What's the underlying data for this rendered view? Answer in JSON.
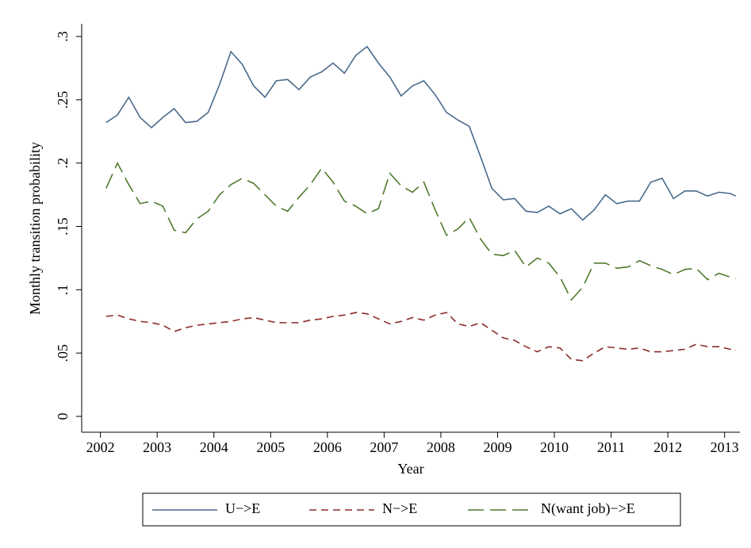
{
  "chart_data": {
    "type": "line",
    "xlabel": "Year",
    "ylabel": "Monthly transition probability",
    "x": [
      2002.1,
      2002.3,
      2002.5,
      2002.7,
      2002.9,
      2003.1,
      2003.3,
      2003.5,
      2003.7,
      2003.9,
      2004.1,
      2004.3,
      2004.5,
      2004.7,
      2004.9,
      2005.1,
      2005.3,
      2005.5,
      2005.7,
      2005.9,
      2006.1,
      2006.3,
      2006.5,
      2006.7,
      2006.9,
      2007.1,
      2007.3,
      2007.5,
      2007.7,
      2007.9,
      2008.1,
      2008.3,
      2008.5,
      2008.7,
      2008.9,
      2009.1,
      2009.3,
      2009.5,
      2009.7,
      2009.9,
      2010.1,
      2010.3,
      2010.5,
      2010.7,
      2010.9,
      2011.1,
      2011.3,
      2011.5,
      2011.7,
      2011.9,
      2012.1,
      2012.3,
      2012.5,
      2012.7,
      2012.9,
      2013.1,
      2013.2
    ],
    "series": [
      {
        "name": "U−>E",
        "color": "#4a6a8c",
        "dash": "solid",
        "values": [
          0.232,
          0.238,
          0.252,
          0.236,
          0.228,
          0.236,
          0.243,
          0.232,
          0.233,
          0.24,
          0.262,
          0.288,
          0.278,
          0.261,
          0.252,
          0.265,
          0.266,
          0.258,
          0.268,
          0.272,
          0.279,
          0.271,
          0.285,
          0.292,
          0.279,
          0.268,
          0.253,
          0.261,
          0.265,
          0.254,
          0.24,
          0.234,
          0.229,
          0.205,
          0.18,
          0.171,
          0.172,
          0.162,
          0.161,
          0.166,
          0.16,
          0.164,
          0.155,
          0.163,
          0.175,
          0.168,
          0.17,
          0.17,
          0.185,
          0.188,
          0.172,
          0.178,
          0.178,
          0.174,
          0.177,
          0.176,
          0.174
        ]
      },
      {
        "name": "N−>E",
        "color": "#8c2c2c",
        "dash": "short",
        "values": [
          0.079,
          0.08,
          0.077,
          0.075,
          0.074,
          0.072,
          0.067,
          0.07,
          0.072,
          0.073,
          0.074,
          0.075,
          0.077,
          0.078,
          0.076,
          0.074,
          0.074,
          0.074,
          0.076,
          0.077,
          0.079,
          0.08,
          0.082,
          0.081,
          0.077,
          0.073,
          0.075,
          0.078,
          0.076,
          0.08,
          0.082,
          0.073,
          0.071,
          0.074,
          0.068,
          0.062,
          0.06,
          0.055,
          0.051,
          0.055,
          0.054,
          0.045,
          0.044,
          0.05,
          0.055,
          0.054,
          0.053,
          0.054,
          0.051,
          0.051,
          0.052,
          0.053,
          0.057,
          0.055,
          0.055,
          0.053,
          0.052
        ]
      },
      {
        "name": "N(want job)−>E",
        "color": "#4f7a2c",
        "dash": "long",
        "values": [
          0.18,
          0.2,
          0.183,
          0.168,
          0.17,
          0.166,
          0.147,
          0.145,
          0.156,
          0.162,
          0.175,
          0.183,
          0.188,
          0.184,
          0.175,
          0.166,
          0.162,
          0.173,
          0.183,
          0.196,
          0.185,
          0.17,
          0.166,
          0.16,
          0.164,
          0.192,
          0.182,
          0.177,
          0.185,
          0.163,
          0.143,
          0.148,
          0.157,
          0.14,
          0.128,
          0.127,
          0.131,
          0.118,
          0.125,
          0.121,
          0.11,
          0.092,
          0.102,
          0.121,
          0.121,
          0.117,
          0.118,
          0.123,
          0.119,
          0.116,
          0.112,
          0.116,
          0.117,
          0.108,
          0.113,
          0.11,
          0.109
        ]
      }
    ],
    "xlim": [
      2001.67,
      2013.27
    ],
    "xticks": [
      2002,
      2003,
      2004,
      2005,
      2006,
      2007,
      2008,
      2009,
      2010,
      2011,
      2012,
      2013
    ],
    "ylim": [
      -0.0125,
      0.31
    ],
    "yticks": [
      0,
      {
        "value": 0.05,
        "label": ".05"
      },
      {
        "value": 0.1,
        "label": ".1"
      },
      {
        "value": 0.15,
        "label": ".15"
      },
      {
        "value": 0.2,
        "label": ".2"
      },
      {
        "value": 0.25,
        "label": ".25"
      },
      {
        "value": 0.3,
        "label": ".3"
      }
    ],
    "grid": false,
    "legend": "bottom"
  }
}
